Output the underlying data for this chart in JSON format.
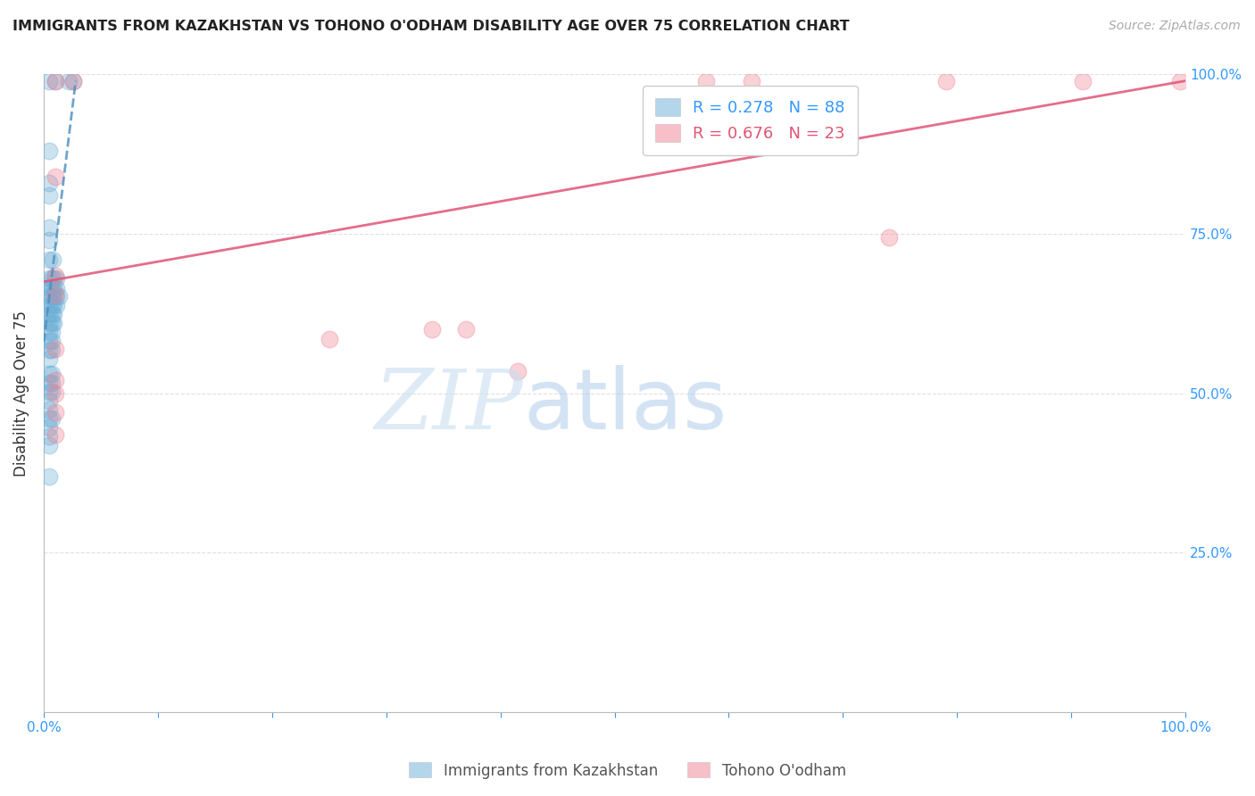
{
  "title": "IMMIGRANTS FROM KAZAKHSTAN VS TOHONO O'ODHAM DISABILITY AGE OVER 75 CORRELATION CHART",
  "source": "Source: ZipAtlas.com",
  "ylabel": "Disability Age Over 75",
  "xlim": [
    0,
    1.0
  ],
  "ylim": [
    0,
    1.0
  ],
  "blue_scatter": [
    [
      0.005,
      0.99
    ],
    [
      0.01,
      0.99
    ],
    [
      0.022,
      0.99
    ],
    [
      0.026,
      0.99
    ],
    [
      0.005,
      0.88
    ],
    [
      0.005,
      0.83
    ],
    [
      0.005,
      0.81
    ],
    [
      0.005,
      0.76
    ],
    [
      0.005,
      0.74
    ],
    [
      0.005,
      0.71
    ],
    [
      0.008,
      0.71
    ],
    [
      0.005,
      0.68
    ],
    [
      0.007,
      0.68
    ],
    [
      0.009,
      0.68
    ],
    [
      0.011,
      0.68
    ],
    [
      0.005,
      0.665
    ],
    [
      0.007,
      0.665
    ],
    [
      0.009,
      0.665
    ],
    [
      0.011,
      0.665
    ],
    [
      0.005,
      0.652
    ],
    [
      0.007,
      0.652
    ],
    [
      0.009,
      0.652
    ],
    [
      0.011,
      0.652
    ],
    [
      0.013,
      0.652
    ],
    [
      0.005,
      0.638
    ],
    [
      0.007,
      0.638
    ],
    [
      0.009,
      0.638
    ],
    [
      0.011,
      0.638
    ],
    [
      0.005,
      0.624
    ],
    [
      0.007,
      0.624
    ],
    [
      0.009,
      0.624
    ],
    [
      0.005,
      0.61
    ],
    [
      0.007,
      0.61
    ],
    [
      0.009,
      0.61
    ],
    [
      0.005,
      0.596
    ],
    [
      0.007,
      0.596
    ],
    [
      0.005,
      0.582
    ],
    [
      0.007,
      0.582
    ],
    [
      0.005,
      0.568
    ],
    [
      0.007,
      0.568
    ],
    [
      0.005,
      0.554
    ],
    [
      0.005,
      0.53
    ],
    [
      0.007,
      0.53
    ],
    [
      0.005,
      0.516
    ],
    [
      0.007,
      0.516
    ],
    [
      0.005,
      0.502
    ],
    [
      0.007,
      0.502
    ],
    [
      0.005,
      0.488
    ],
    [
      0.005,
      0.474
    ],
    [
      0.005,
      0.46
    ],
    [
      0.007,
      0.46
    ],
    [
      0.005,
      0.446
    ],
    [
      0.005,
      0.432
    ],
    [
      0.005,
      0.418
    ],
    [
      0.005,
      0.37
    ]
  ],
  "pink_scatter": [
    [
      0.01,
      0.99
    ],
    [
      0.026,
      0.99
    ],
    [
      0.58,
      0.99
    ],
    [
      0.62,
      0.99
    ],
    [
      0.79,
      0.99
    ],
    [
      0.91,
      0.99
    ],
    [
      0.995,
      0.99
    ],
    [
      0.01,
      0.84
    ],
    [
      0.01,
      0.685
    ],
    [
      0.01,
      0.655
    ],
    [
      0.34,
      0.6
    ],
    [
      0.37,
      0.6
    ],
    [
      0.25,
      0.585
    ],
    [
      0.01,
      0.57
    ],
    [
      0.01,
      0.52
    ],
    [
      0.01,
      0.5
    ],
    [
      0.01,
      0.47
    ],
    [
      0.74,
      0.745
    ],
    [
      0.01,
      0.435
    ],
    [
      0.415,
      0.535
    ]
  ],
  "blue_line_x": [
    0.0,
    0.028
  ],
  "blue_line_y": [
    0.58,
    0.99
  ],
  "pink_line_x": [
    0.0,
    1.0
  ],
  "pink_line_y": [
    0.675,
    0.99
  ],
  "blue_color": "#6aaed6",
  "pink_color": "#f08090",
  "blue_line_color": "#4a8ec0",
  "pink_line_color": "#e05575",
  "watermark_zip_color": "#c8dff0",
  "watermark_atlas_color": "#a8c8e8",
  "background_color": "#ffffff",
  "grid_color": "#dddddd",
  "legend_blue_label": "R = 0.278   N = 88",
  "legend_pink_label": "R = 0.676   N = 23",
  "bottom_label_blue": "Immigrants from Kazakhstan",
  "bottom_label_pink": "Tohono O'odham"
}
